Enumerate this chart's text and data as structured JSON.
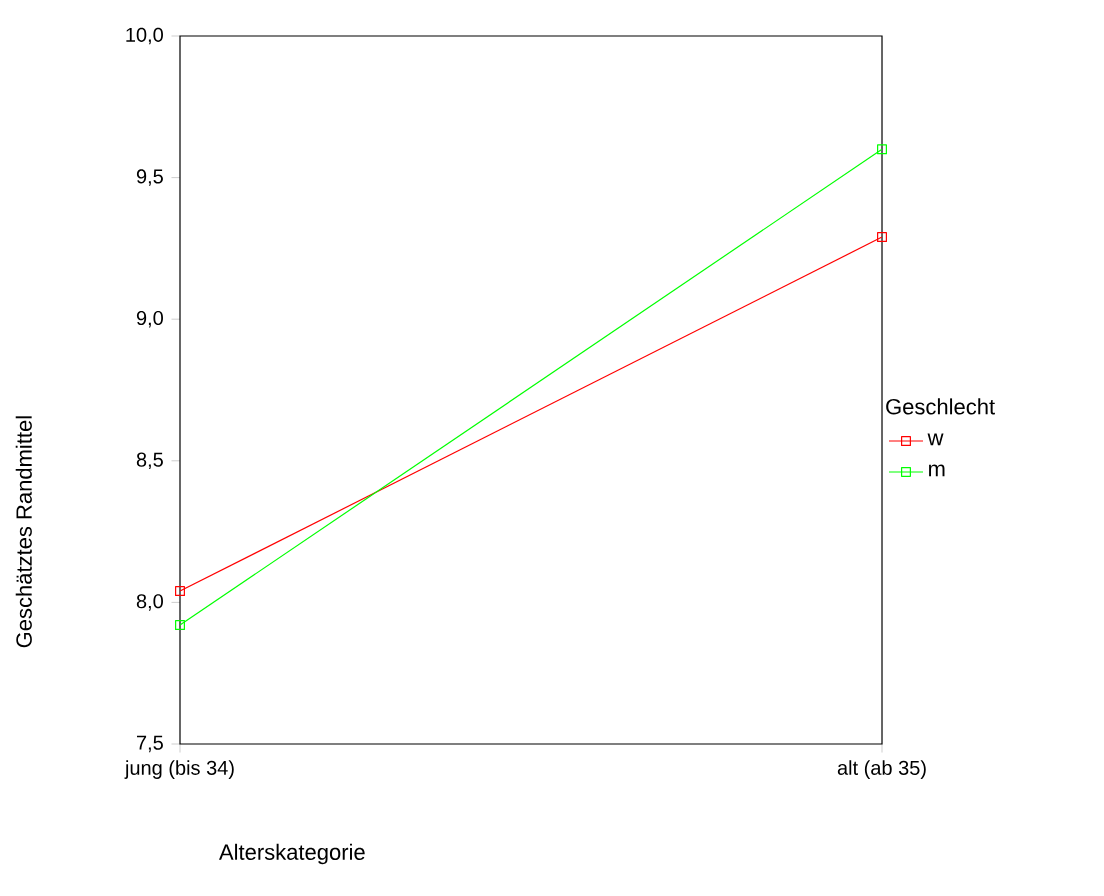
{
  "chart_data": {
    "type": "line",
    "xlabel": "Alterskategorie",
    "ylabel": "Geschätztes Randmittel",
    "legend_title": "Geschlecht",
    "categories": [
      "jung (bis 34)",
      "alt (ab 35)"
    ],
    "series": [
      {
        "name": "w",
        "color": "#ff0000",
        "values": [
          8.04,
          9.29
        ]
      },
      {
        "name": "m",
        "color": "#00ff00",
        "values": [
          7.92,
          9.6
        ]
      }
    ],
    "ylim": [
      7.5,
      10.0
    ],
    "yticks": [
      {
        "value": 7.5,
        "label": "7,5"
      },
      {
        "value": 8.0,
        "label": "8,0"
      },
      {
        "value": 8.5,
        "label": "8,5"
      },
      {
        "value": 9.0,
        "label": "9,0"
      },
      {
        "value": 9.5,
        "label": "9,5"
      },
      {
        "value": 10.0,
        "label": "10,0"
      }
    ],
    "grid": false,
    "legend": "right",
    "marker": "square",
    "line_style": "solid"
  }
}
